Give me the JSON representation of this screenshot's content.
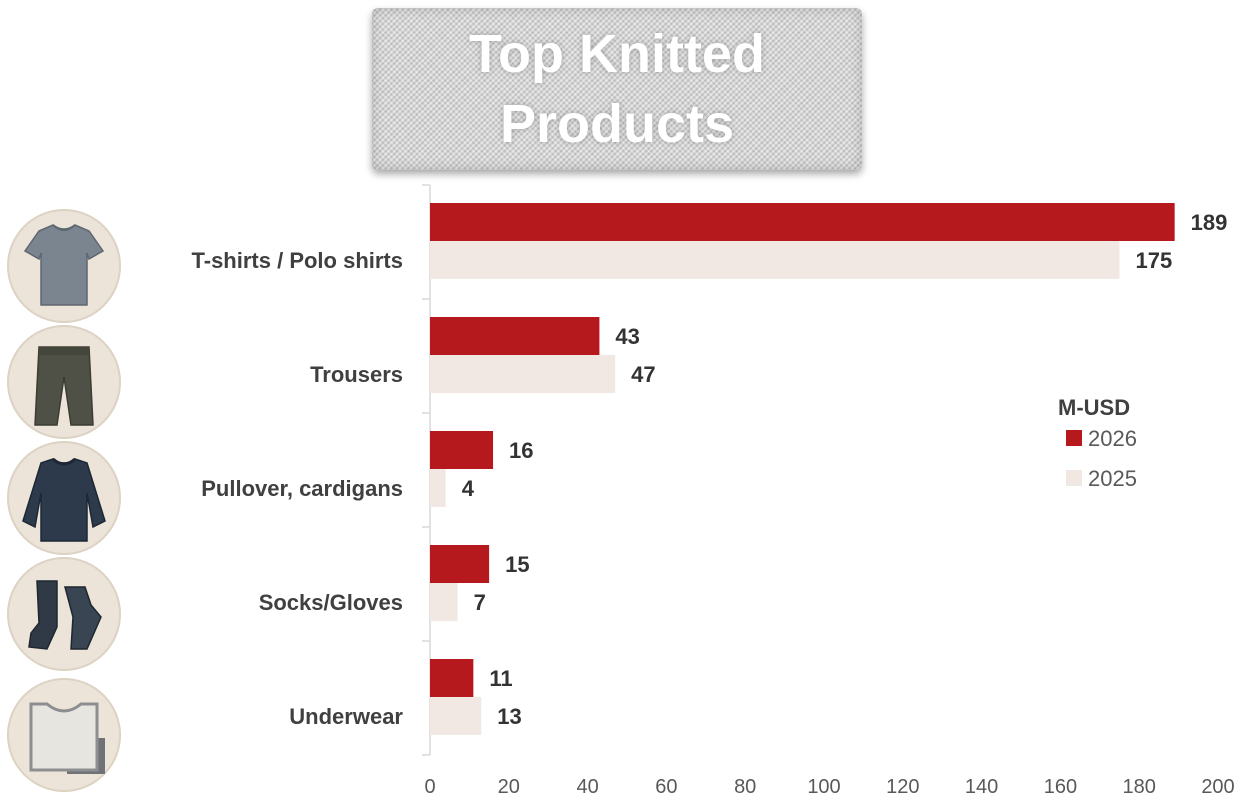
{
  "chart_data": {
    "type": "bar",
    "orientation": "horizontal",
    "title": "Top Knitted Products",
    "categories": [
      "T-shirts / Polo shirts",
      "Trousers",
      "Pullover, cardigans",
      "Socks/Gloves",
      "Underwear"
    ],
    "series": [
      {
        "name": "2026",
        "values": [
          189,
          43,
          16,
          15,
          11
        ],
        "color": "#b5181d"
      },
      {
        "name": "2025",
        "values": [
          175,
          47,
          4,
          7,
          13
        ],
        "color": "#f2e8e3"
      }
    ],
    "xlim": [
      0,
      200
    ],
    "xticks": [
      "0",
      "20",
      "40",
      "60",
      "80",
      "100",
      "120",
      "140",
      "160",
      "180",
      "200"
    ],
    "legend": {
      "title": "M-USD",
      "position": "right"
    },
    "grid": false
  },
  "icons": [
    "t-shirt-icon",
    "trousers-icon",
    "sweater-icon",
    "socks-icon",
    "underwear-icon"
  ]
}
